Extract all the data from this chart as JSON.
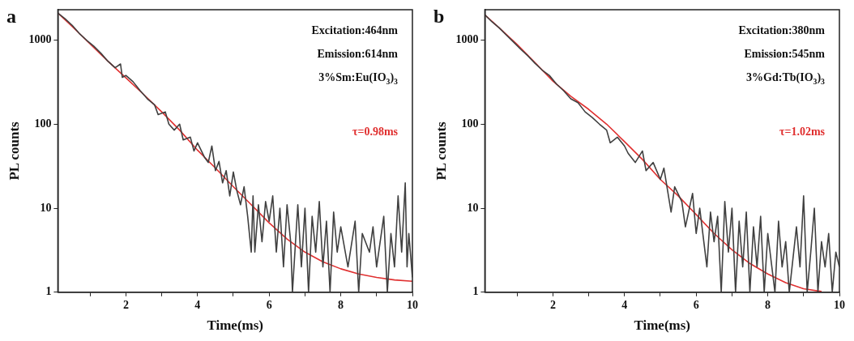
{
  "chart_data": [
    {
      "type": "line",
      "title": "a",
      "xlabel": "Time(ms)",
      "ylabel": "PL counts",
      "log": "y",
      "grid": false,
      "legend": false,
      "marker": "none",
      "line_style": "solid",
      "xlim": [
        0.1,
        10
      ],
      "xticks": [
        {
          "value": 1,
          "label": null
        },
        2,
        {
          "value": 3,
          "label": null
        },
        4,
        {
          "value": 5,
          "label": null
        },
        6,
        {
          "value": 7,
          "label": null
        },
        8,
        {
          "value": 9,
          "label": null
        },
        10
      ],
      "ylim": [
        1,
        2300
      ],
      "yticks": [
        1,
        10,
        100,
        1000
      ],
      "annotations": [
        "Excitation:464nm",
        "Emission:614nm",
        "3%Sm:Eu(IO$_{3}$)$_{3}$",
        "τ=0.98ms"
      ],
      "series": [
        {
          "color": "#404040",
          "x": [
            0.1,
            0.3,
            0.5,
            0.7,
            0.9,
            1.1,
            1.3,
            1.5,
            1.7,
            1.85,
            1.9,
            2.0,
            2.2,
            2.4,
            2.6,
            2.8,
            2.9,
            3.1,
            3.2,
            3.35,
            3.5,
            3.6,
            3.8,
            3.9,
            4.0,
            4.2,
            4.3,
            4.4,
            4.5,
            4.6,
            4.7,
            4.8,
            4.9,
            5.0,
            5.1,
            5.2,
            5.3,
            5.4,
            5.5,
            5.55,
            5.6,
            5.7,
            5.8,
            5.9,
            6.0,
            6.1,
            6.2,
            6.3,
            6.4,
            6.5,
            6.6,
            6.65,
            6.8,
            6.9,
            7.0,
            7.1,
            7.2,
            7.3,
            7.4,
            7.5,
            7.6,
            7.7,
            7.8,
            7.9,
            8.0,
            8.2,
            8.4,
            8.5,
            8.6,
            8.8,
            8.9,
            9.0,
            9.2,
            9.3,
            9.4,
            9.5,
            9.6,
            9.7,
            9.8,
            9.85,
            9.9,
            10
          ],
          "values": [
            2100,
            1800,
            1500,
            1200,
            1000,
            850,
            700,
            560,
            470,
            520,
            360,
            380,
            320,
            250,
            200,
            170,
            130,
            140,
            100,
            85,
            100,
            65,
            70,
            48,
            60,
            40,
            35,
            55,
            28,
            36,
            20,
            28,
            14,
            27,
            16,
            11,
            18,
            8,
            3,
            14,
            3,
            11,
            4,
            12,
            7,
            14,
            3,
            10,
            2,
            11,
            4,
            1,
            11,
            2,
            10,
            1,
            8,
            3,
            12,
            2,
            7,
            1,
            9,
            3,
            6,
            2,
            7,
            1,
            5,
            3,
            6,
            2,
            8,
            1,
            5,
            2,
            14,
            3,
            20,
            2,
            5,
            1.5
          ]
        },
        {
          "color": "#e03030",
          "x": [
            0.1,
            0.5,
            1,
            1.5,
            2,
            2.5,
            3,
            3.5,
            4,
            4.5,
            5,
            5.5,
            6,
            6.5,
            7,
            7.5,
            8,
            8.5,
            9,
            9.5,
            10
          ],
          "values": [
            2100,
            1450,
            900,
            560,
            355,
            225,
            140,
            85,
            49,
            30,
            18,
            11,
            6.7,
            4.3,
            3,
            2.3,
            1.9,
            1.65,
            1.5,
            1.4,
            1.35
          ]
        }
      ]
    },
    {
      "type": "line",
      "title": "b",
      "xlabel": "Time(ms)",
      "ylabel": "PL counts",
      "log": "y",
      "grid": false,
      "legend": false,
      "marker": "none",
      "line_style": "solid",
      "xlim": [
        0.1,
        10
      ],
      "xticks": [
        {
          "value": 1,
          "label": null
        },
        2,
        {
          "value": 3,
          "label": null
        },
        4,
        {
          "value": 5,
          "label": null
        },
        6,
        {
          "value": 7,
          "label": null
        },
        8,
        {
          "value": 9,
          "label": null
        },
        10
      ],
      "ylim": [
        1,
        2300
      ],
      "yticks": [
        1,
        10,
        100,
        1000
      ],
      "annotations": [
        "Excitation:380nm",
        "Emission:545nm",
        "3%Gd:Tb(IO$_{3}$)$_{3}$",
        "τ=1.02ms"
      ],
      "series": [
        {
          "color": "#404040",
          "x": [
            0.1,
            0.3,
            0.5,
            0.7,
            0.9,
            1.1,
            1.3,
            1.5,
            1.7,
            1.9,
            2.1,
            2.3,
            2.5,
            2.7,
            2.9,
            3.1,
            3.3,
            3.5,
            3.6,
            3.8,
            4.0,
            4.1,
            4.3,
            4.5,
            4.6,
            4.8,
            5.0,
            5.1,
            5.3,
            5.4,
            5.6,
            5.7,
            5.9,
            6.0,
            6.1,
            6.3,
            6.4,
            6.5,
            6.6,
            6.7,
            6.8,
            6.9,
            7.0,
            7.1,
            7.2,
            7.3,
            7.4,
            7.5,
            7.6,
            7.7,
            7.8,
            7.9,
            8.0,
            8.2,
            8.3,
            8.4,
            8.5,
            8.6,
            8.8,
            8.9,
            9.0,
            9.1,
            9.2,
            9.3,
            9.4,
            9.5,
            9.6,
            9.7,
            9.8,
            9.9,
            10
          ],
          "values": [
            2000,
            1650,
            1400,
            1150,
            950,
            780,
            650,
            530,
            440,
            380,
            300,
            250,
            200,
            180,
            140,
            120,
            100,
            85,
            60,
            70,
            55,
            45,
            35,
            48,
            28,
            35,
            22,
            30,
            9,
            18,
            12,
            6,
            15,
            5,
            10,
            2,
            9,
            4,
            8,
            1,
            12,
            3,
            10,
            1,
            7,
            2,
            9,
            1,
            6,
            2,
            8,
            1,
            5,
            1,
            7,
            2,
            4,
            1,
            6,
            2,
            14,
            1,
            3,
            10,
            1,
            4,
            2,
            5,
            1,
            3,
            2
          ]
        },
        {
          "color": "#e03030",
          "x": [
            0.1,
            0.5,
            1,
            1.5,
            2,
            2.5,
            3,
            3.5,
            4,
            4.5,
            5,
            5.5,
            6,
            6.5,
            7,
            7.5,
            8,
            8.5,
            9,
            9.5
          ],
          "values": [
            2000,
            1400,
            890,
            540,
            325,
            215,
            150,
            100,
            62,
            38,
            22,
            14,
            8.4,
            5,
            3.2,
            2.2,
            1.65,
            1.3,
            1.1,
            1.02
          ]
        }
      ]
    }
  ]
}
